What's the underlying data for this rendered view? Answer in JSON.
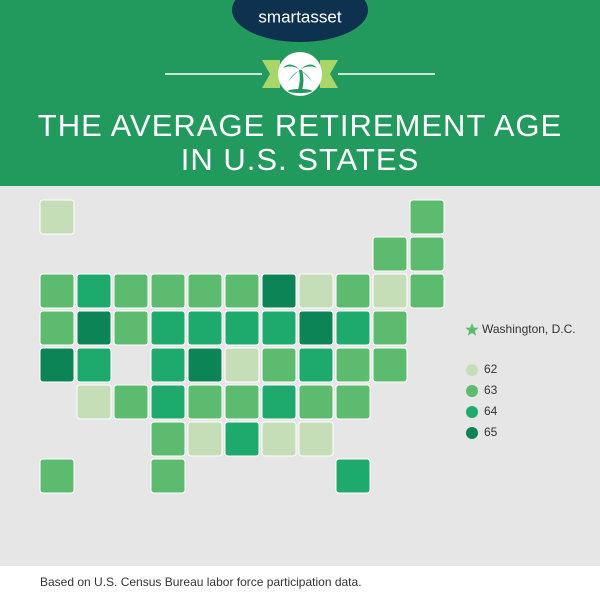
{
  "brand": "smartasset",
  "title_lines": [
    "THE AVERAGE RETIREMENT AGE",
    "IN U.S. STATES"
  ],
  "footer": "Based on U.S. Census Bureau labor force participation data.",
  "chart_data": {
    "type": "map",
    "values": [
      63,
      63,
      65,
      65,
      64,
      63,
      63,
      64,
      62,
      63,
      63,
      64,
      64,
      64,
      63,
      63,
      63,
      64,
      65,
      63,
      62,
      63,
      65,
      64,
      64,
      62,
      63,
      64,
      62,
      62,
      64,
      63,
      64,
      64,
      63,
      65,
      62,
      63,
      63,
      63,
      63,
      63,
      62,
      63,
      64,
      63,
      63,
      62,
      63,
      63
    ],
    "legend": [
      {
        "label": 62,
        "color": "#c5deb8"
      },
      {
        "label": 63,
        "color": "#5dbb6f"
      },
      {
        "label": 64,
        "color": "#1faa6d"
      },
      {
        "label": 65,
        "color": "#0c8456"
      }
    ],
    "dc": {
      "label": "Washington, D.C.",
      "value": 63
    }
  }
}
